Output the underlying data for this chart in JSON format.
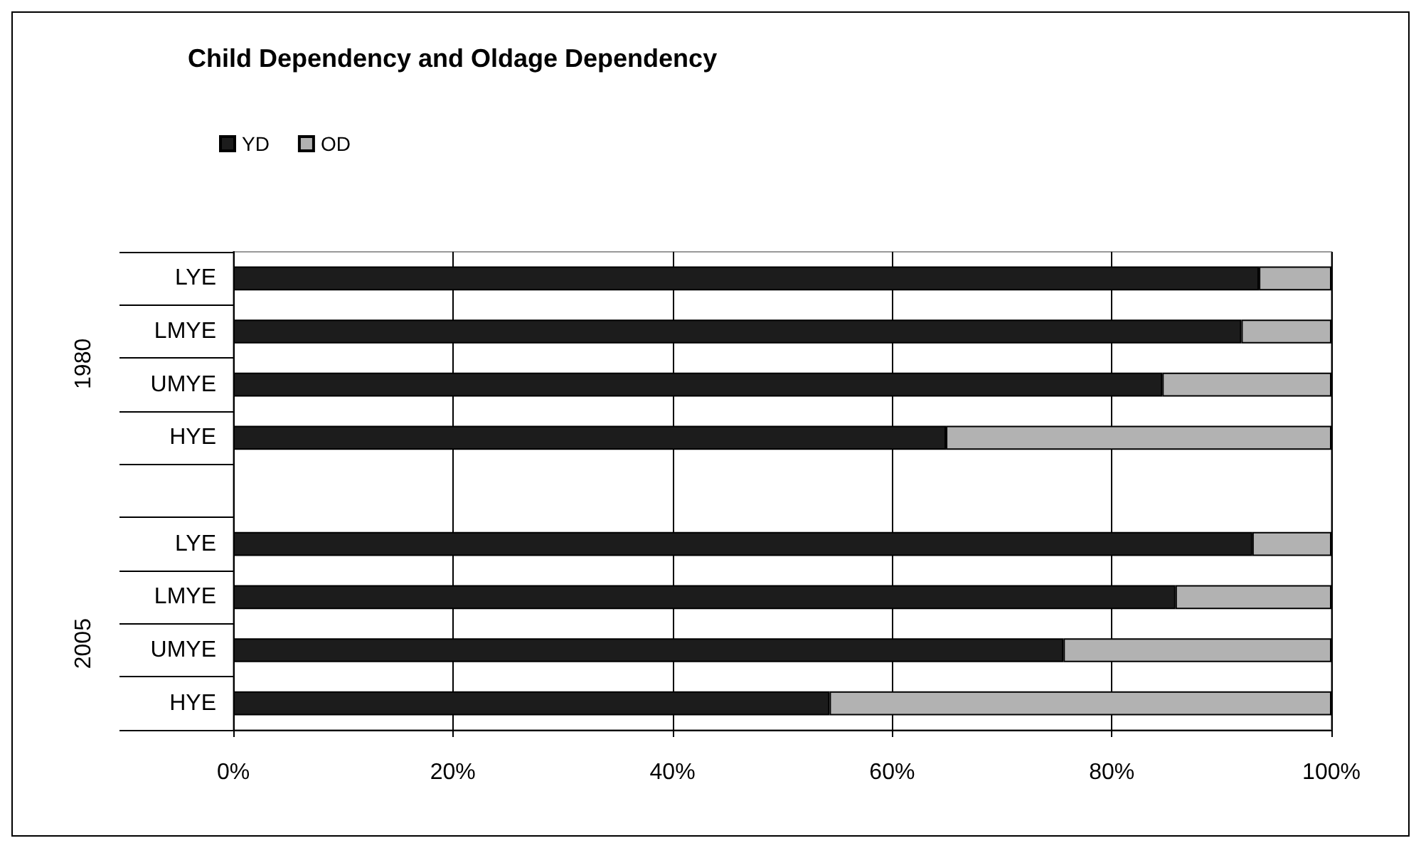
{
  "chart_data": {
    "type": "bar",
    "orientation": "horizontal",
    "stacked": true,
    "title": "Child Dependency and Oldage Dependency",
    "categories": [
      "LYE",
      "LMYE",
      "UMYE",
      "HYE",
      null,
      "LYE",
      "LMYE",
      "UMYE",
      "HYE"
    ],
    "series": [
      {
        "name": "YD",
        "color": "#1c1c1c",
        "values": [
          93.4,
          91.8,
          84.6,
          64.9,
          null,
          92.8,
          85.8,
          75.6,
          54.3
        ]
      },
      {
        "name": "OD",
        "color": "#b2b2b2",
        "values": [
          6.6,
          8.2,
          15.4,
          35.1,
          null,
          7.2,
          14.2,
          24.4,
          45.7
        ]
      }
    ],
    "xlim": [
      0,
      100
    ],
    "xticks": [
      {
        "value": 0,
        "label": "0%"
      },
      {
        "value": 20,
        "label": "20%"
      },
      {
        "value": 40,
        "label": "40%"
      },
      {
        "value": 60,
        "label": "60%"
      },
      {
        "value": 80,
        "label": "80%"
      },
      {
        "value": 100,
        "label": "100%"
      }
    ],
    "annotations": [
      "1980",
      "2005"
    ],
    "grid": "x",
    "legend": "top left"
  }
}
